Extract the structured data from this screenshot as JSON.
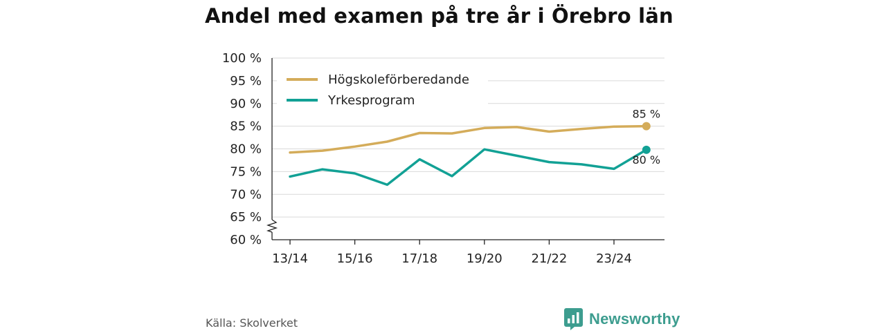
{
  "title": "Andel med examen på tre år i Örebro län",
  "source": "Källa: Skolverket",
  "brand": {
    "name": "Newsworthy",
    "color": "#3d9d8f"
  },
  "chart_data": {
    "type": "line",
    "title": "Andel med examen på tre år i Örebro län",
    "xlabel": "",
    "ylabel": "",
    "ylim": [
      60,
      100
    ],
    "y_ticks": [
      60,
      65,
      70,
      75,
      80,
      85,
      90,
      95,
      100
    ],
    "y_tick_labels": [
      "60 %",
      "65 %",
      "70 %",
      "75 %",
      "80 %",
      "85 %",
      "90 %",
      "95 %",
      "100 %"
    ],
    "x": [
      "13/14",
      "14/15",
      "15/16",
      "16/17",
      "17/18",
      "18/19",
      "19/20",
      "20/21",
      "21/22",
      "22/23",
      "23/24",
      "24/25"
    ],
    "x_tick_labels": [
      "13/14",
      "15/16",
      "17/18",
      "19/20",
      "21/22",
      "23/24"
    ],
    "axis_break": true,
    "grid": true,
    "legend_position": "top-left",
    "series": [
      {
        "name": "Högskoleförberedande",
        "color": "#d4ac5a",
        "values": [
          79.2,
          79.6,
          80.5,
          81.6,
          83.5,
          83.4,
          84.6,
          84.8,
          83.8,
          84.4,
          84.9,
          85.0
        ],
        "end_label": "85 %"
      },
      {
        "name": "Yrkesprogram",
        "color": "#12a195",
        "values": [
          73.9,
          75.5,
          74.6,
          72.1,
          77.7,
          74.0,
          79.9,
          78.5,
          77.1,
          76.6,
          75.6,
          79.8
        ],
        "end_label": "80 %"
      }
    ]
  }
}
